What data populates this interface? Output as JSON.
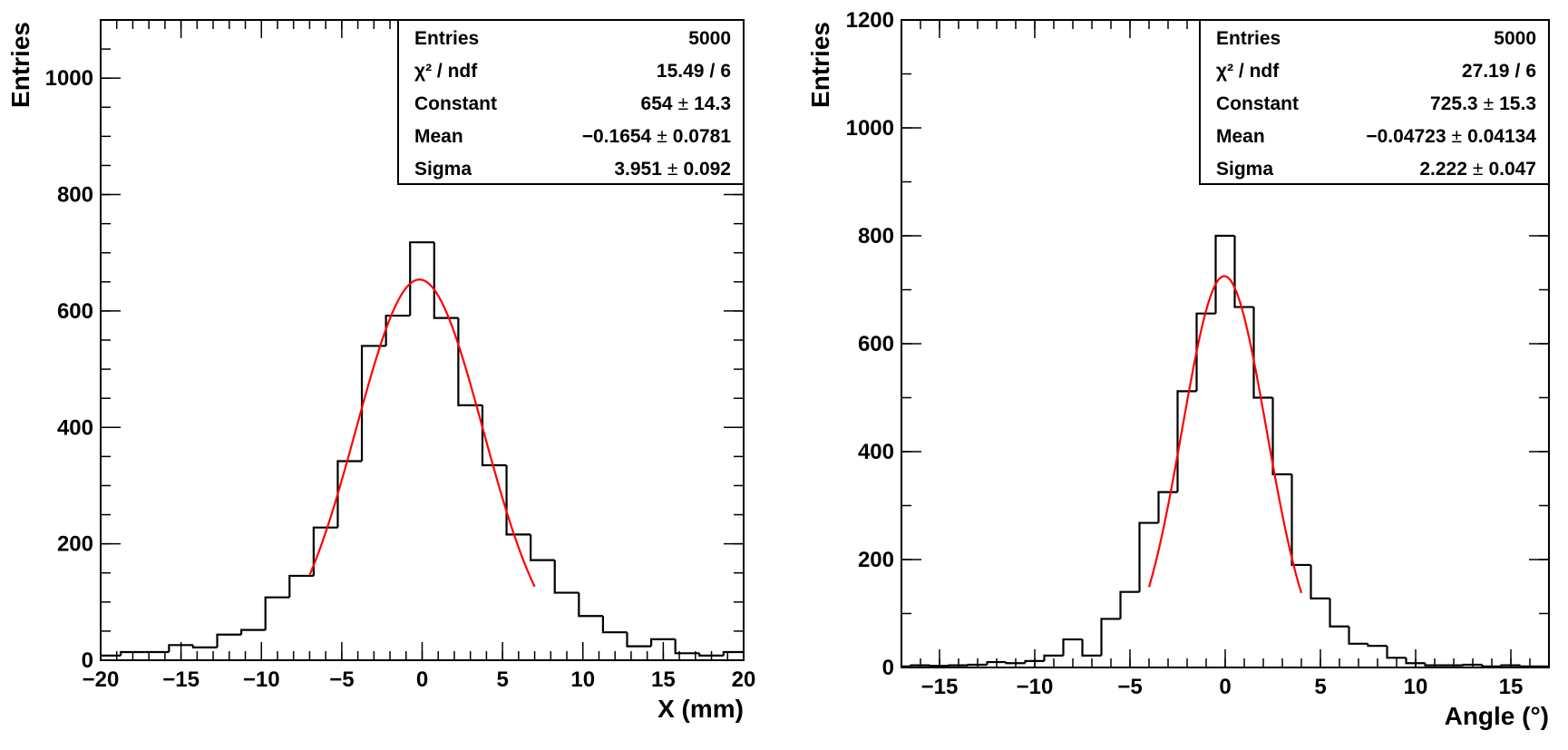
{
  "chart_data": [
    {
      "type": "histogram",
      "x_label": "X (mm)",
      "y_label": "Entries",
      "color": "#000000",
      "bins": [
        -20.25,
        -18.75,
        -17.25,
        -15.75,
        -14.25,
        -12.75,
        -11.25,
        -9.75,
        -8.25,
        -6.75,
        -5.25,
        -3.75,
        -2.25,
        -0.75,
        0.75,
        2.25,
        3.75,
        5.25,
        6.75,
        8.25,
        9.75,
        11.25,
        12.75,
        14.25,
        15.75,
        17.25,
        18.75,
        20.25
      ],
      "values": [
        8,
        14,
        14,
        26,
        22,
        44,
        52,
        108,
        145,
        228,
        342,
        540,
        592,
        718,
        588,
        438,
        335,
        216,
        172,
        116,
        76,
        48,
        24,
        36,
        12,
        8,
        14
      ],
      "xlim": [
        -20,
        20
      ],
      "xticks": [
        {
          "value": -20,
          "label": "−20"
        },
        {
          "value": -15,
          "label": "−15"
        },
        {
          "value": -10,
          "label": "−10"
        },
        {
          "value": -5,
          "label": "−5"
        },
        0,
        5,
        10,
        15,
        20
      ],
      "x_minor_step": 1,
      "ylim": [
        0,
        1100
      ],
      "yticks": [
        0,
        200,
        400,
        600,
        800,
        1000
      ],
      "y_minor_step": 50,
      "fit": {
        "color": "#ff0000",
        "range": [
          -7,
          7
        ]
      },
      "stats": {
        "entries_label": "Entries",
        "entries": 5000,
        "chi2_label": "χ² / ndf",
        "chi2": 15.49,
        "separator": "/",
        "ndf": 6,
        "pm": "±",
        "params": [
          {
            "name": "Constant",
            "value": 654,
            "error": 14.3
          },
          {
            "name": "Mean",
            "value": {
              "value": -0.1654,
              "label": "−0.1654"
            },
            "error": 0.0781
          },
          {
            "name": "Sigma",
            "value": 3.951,
            "error": 0.092
          }
        ]
      }
    },
    {
      "type": "histogram",
      "x_label": "Angle (°)",
      "y_label": "Entries",
      "color": "#000000",
      "bins": [
        -17.5,
        -16.5,
        -15.5,
        -14.5,
        -13.5,
        -12.5,
        -11.5,
        -10.5,
        -9.5,
        -8.5,
        -7.5,
        -6.5,
        -5.5,
        -4.5,
        -3.5,
        -2.5,
        -1.5,
        -0.5,
        0.5,
        1.5,
        2.5,
        3.5,
        4.5,
        5.5,
        6.5,
        7.5,
        8.5,
        9.5,
        10.5,
        11.5,
        12.5,
        13.5,
        14.5,
        15.5,
        16.5,
        17.5
      ],
      "values": [
        2,
        4,
        3,
        4,
        5,
        10,
        8,
        12,
        22,
        52,
        22,
        90,
        140,
        268,
        325,
        512,
        656,
        800,
        668,
        500,
        358,
        190,
        128,
        76,
        44,
        40,
        18,
        8,
        4,
        4,
        5,
        2,
        4,
        2,
        2
      ],
      "xlim": [
        -17,
        17
      ],
      "xticks": [
        {
          "value": -15,
          "label": "−15"
        },
        {
          "value": -10,
          "label": "−10"
        },
        {
          "value": -5,
          "label": "−5"
        },
        0,
        5,
        10,
        15
      ],
      "x_minor_step": 1,
      "ylim": [
        0,
        1200
      ],
      "yticks": [
        0,
        200,
        400,
        600,
        800,
        1000,
        1200
      ],
      "y_minor_step": 100,
      "fit": {
        "color": "#ff0000",
        "range": [
          -4,
          4
        ]
      },
      "stats": {
        "entries_label": "Entries",
        "entries": 5000,
        "chi2_label": "χ² / ndf",
        "chi2": 27.19,
        "separator": "/",
        "ndf": 6,
        "pm": "±",
        "params": [
          {
            "name": "Constant",
            "value": 725.3,
            "error": 15.3
          },
          {
            "name": "Mean",
            "value": {
              "value": -0.04723,
              "label": "−0.04723"
            },
            "error": 0.04134
          },
          {
            "name": "Sigma",
            "value": 2.222,
            "error": 0.047
          }
        ]
      }
    }
  ]
}
